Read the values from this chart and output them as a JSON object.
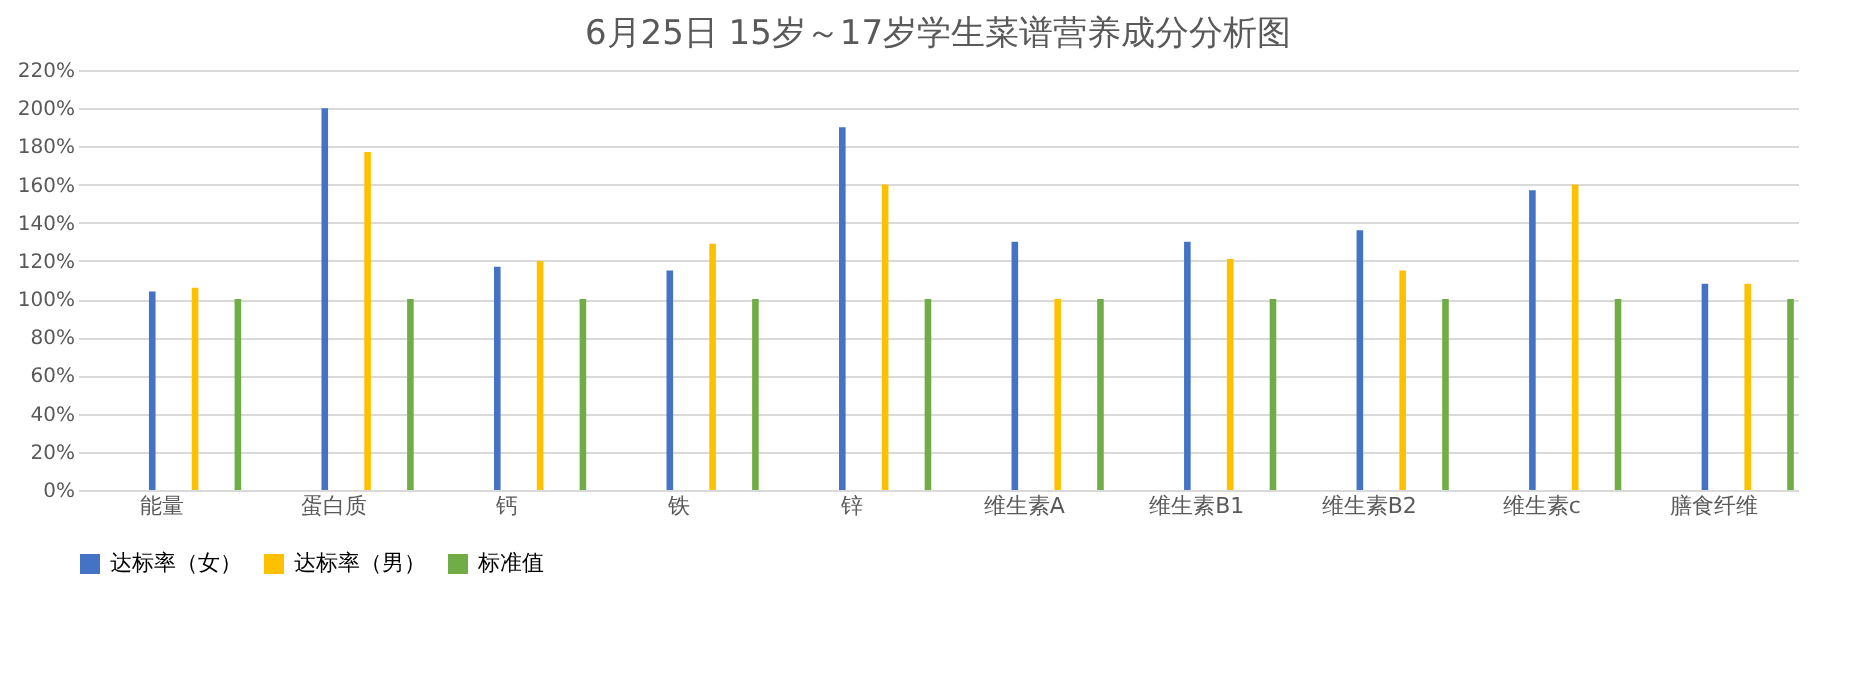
{
  "chart_data": {
    "type": "bar",
    "title": "6月25日 15岁～17岁学生菜谱营养成分分析图",
    "categories": [
      "能量",
      "蛋白质",
      "钙",
      "铁",
      "锌",
      "维生素A",
      "维生素B1",
      "维生素B2",
      "维生素c",
      "膳食纤维"
    ],
    "series": [
      {
        "name": "达标率（女）",
        "color": "#4472c4",
        "values": [
          104,
          200,
          117,
          115,
          190,
          130,
          130,
          136,
          157,
          108
        ]
      },
      {
        "name": "达标率（男）",
        "color": "#ffc000",
        "values": [
          106,
          177,
          120,
          129,
          160,
          100,
          121,
          115,
          160,
          108
        ]
      },
      {
        "name": "标准值",
        "color": "#70ad47",
        "values": [
          100,
          100,
          100,
          100,
          100,
          100,
          100,
          100,
          100,
          100
        ]
      }
    ],
    "ylim": [
      0,
      220
    ],
    "yticks": [
      {
        "value": 0,
        "label": "0%"
      },
      {
        "value": 20,
        "label": "20%"
      },
      {
        "value": 40,
        "label": "40%"
      },
      {
        "value": 60,
        "label": "60%"
      },
      {
        "value": 80,
        "label": "80%"
      },
      {
        "value": 100,
        "label": "100%"
      },
      {
        "value": 120,
        "label": "120%"
      },
      {
        "value": 140,
        "label": "140%"
      },
      {
        "value": 160,
        "label": "160%"
      },
      {
        "value": 180,
        "label": "180%"
      },
      {
        "value": 200,
        "label": "200%"
      },
      {
        "value": 220,
        "label": "220%"
      }
    ],
    "grid": "y",
    "legend": "bottom"
  }
}
